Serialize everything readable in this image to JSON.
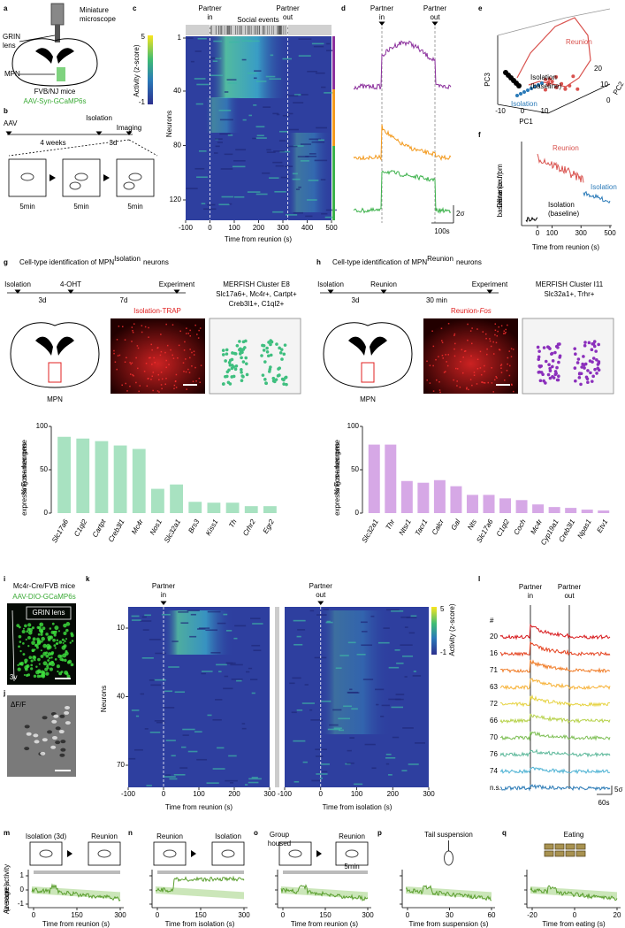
{
  "a": {
    "label": "a",
    "microscope": [
      "Miniature",
      "microscope"
    ],
    "grin": [
      "GRIN",
      "lens"
    ],
    "mpn": "MPN",
    "mice": "FVB/NJ mice",
    "virus": "AAV-Syn-GCaMP6s"
  },
  "b": {
    "label": "b",
    "aav": "AAV",
    "isolation": "Isolation",
    "imaging": "Imaging",
    "weeks": "4 weeks",
    "days": "3d",
    "durations": [
      "5min",
      "5min",
      "5min"
    ]
  },
  "c": {
    "label": "c",
    "partner_in": [
      "Partner",
      "in"
    ],
    "partner_out": [
      "Partner",
      "out"
    ],
    "events": "Social events",
    "colorbar_label": "Activity (z-score)",
    "colorbar_ticks": [
      5,
      -1
    ],
    "ylabel": "Neurons",
    "yticks": [
      1,
      40,
      80,
      120
    ],
    "xticks": [
      -100,
      0,
      100,
      200,
      300,
      400,
      500
    ],
    "xlabel": "Time from reunion (s)"
  },
  "d": {
    "label": "d",
    "partner_in": [
      "Partner",
      "in"
    ],
    "partner_out": [
      "Partner",
      "out"
    ],
    "scale_y": "2σ",
    "scale_x": "100s"
  },
  "e": {
    "label": "e",
    "reunion": "Reunion",
    "baseline": [
      "Isolation",
      "(baseline)"
    ],
    "isolation": "Isolation",
    "axes": [
      "PC1",
      "PC2",
      "PC3"
    ],
    "pc1_ticks": [
      -10,
      0,
      10
    ],
    "pc2_ticks": [
      0,
      10,
      20
    ]
  },
  "f": {
    "label": "f",
    "ylabel": [
      "Distance from",
      "baseline (a.u.)"
    ],
    "reunion": "Reunion",
    "isolation": "Isolation",
    "baseline": [
      "Isolation",
      "(baseline)"
    ],
    "xticks": [
      0,
      100,
      300,
      500
    ],
    "xlabel": "Time from reunion (s)"
  },
  "g": {
    "label": "g",
    "title": "Cell-type identification of  MPN",
    "title_sup": "Isolation",
    "title_end": "neurons",
    "timeline": [
      "Isolation",
      "3d",
      "4-OHT",
      "7d",
      "Experiment"
    ],
    "mpn": "MPN",
    "image_label": "Isolation-TRAP",
    "merfish": [
      "MERFISH Cluster E8",
      "Slc17a6+, Mc4r+, Cartpt+",
      "Creb3l1+, C1ql2+"
    ]
  },
  "h": {
    "label": "h",
    "title": "Cell-type identification of MPN",
    "title_sup": "Reunion",
    "title_end": "neurons",
    "timeline": [
      "Isolation",
      "3d",
      "Reunion",
      "30 min",
      "Experiment"
    ],
    "mpn": "MPN",
    "image_label": [
      "Reunion-",
      "Fos"
    ],
    "merfish": [
      "MERFISH Cluster I11",
      "Slc32a1+, Trhr+"
    ]
  },
  "i": {
    "label": "i",
    "mice": "Mc4r-Cre/FVB mice",
    "virus": "AAV-DIO-GCaMP6s",
    "grin": "GRIN lens",
    "ventricle": "3v"
  },
  "j": {
    "label": "j",
    "dff": "ΔF/F"
  },
  "k": {
    "label": "k",
    "partner_in": [
      "Partner",
      "in"
    ],
    "partner_out": [
      "Partner",
      "out"
    ],
    "colorbar_label": "Activity (z-score)",
    "colorbar_ticks": [
      5,
      -1
    ],
    "ylabel": "Neurons",
    "yticks": [
      10,
      40,
      70
    ],
    "xticks": [
      -100,
      0,
      100,
      200,
      300
    ],
    "xlabel_left": "Time from reunion (s)",
    "xlabel_right": "Time from isolation (s)"
  },
  "l": {
    "label": "l",
    "partner_in": [
      "Partner",
      "in"
    ],
    "partner_out": [
      "Partner",
      "out"
    ],
    "rows": [
      "#",
      20,
      16,
      71,
      63,
      72,
      66,
      70,
      76,
      74,
      "n.s."
    ],
    "scale_y": "5σ",
    "scale_x": "60s"
  },
  "bottom": {
    "ylabel": [
      "Average activity",
      "(z-score)"
    ],
    "yticks": [
      1,
      0,
      -1
    ]
  },
  "m": {
    "label": "m",
    "steps": [
      "Isolation (3d)",
      "Reunion"
    ],
    "xticks": [
      0,
      150,
      300
    ],
    "xlabel": "Time from reunion (s)"
  },
  "n": {
    "label": "n",
    "steps": [
      "Reunion",
      "Isolation"
    ],
    "xticks": [
      0,
      150,
      300
    ],
    "xlabel": "Time from isolation (s)"
  },
  "o": {
    "label": "o",
    "steps": [
      [
        "Group",
        "housed"
      ],
      "Reunion"
    ],
    "duration": "5min",
    "xticks": [
      0,
      150,
      300
    ],
    "xlabel": "Time from reunion (s)"
  },
  "p": {
    "label": "p",
    "title": "Tail suspension",
    "xticks": [
      0,
      30,
      60
    ],
    "xlabel": "Time from suspension (s)"
  },
  "q": {
    "label": "q",
    "title": "Eating",
    "xticks": [
      -20,
      0,
      20
    ],
    "xlabel": "Time from eating (s)"
  },
  "chart_data": [
    {
      "type": "bar",
      "ylabel": [
        "% Fos+ neurons",
        "expressing marker gene"
      ],
      "categories": [
        "Slc17a6",
        "C1ql2",
        "Cartpt",
        "Creb3l1",
        "Mc4r",
        "Nos1",
        "Slc32a1",
        "Brs3",
        "Kiss1",
        "Th",
        "Crhr2",
        "Egr2"
      ],
      "values": [
        88,
        86,
        83,
        78,
        74,
        28,
        33,
        13,
        12,
        12,
        8,
        8
      ],
      "color": "#a8e2c1",
      "ylim": [
        0,
        100
      ],
      "yticks": [
        0,
        50,
        100
      ]
    },
    {
      "type": "bar",
      "ylabel": [
        "% Fos+ neurons",
        "expressing marker gene"
      ],
      "categories": [
        "Slc32a1",
        "Thr",
        "Ntsr1",
        "Tacr1",
        "Calcr",
        "Gal",
        "Nts",
        "Slc17a6",
        "C1ql2",
        "Coch",
        "Mc4r",
        "Cyp19a1",
        "Creb3l1",
        "Npas1",
        "Etv1"
      ],
      "values": [
        79,
        79,
        37,
        35,
        38,
        31,
        21,
        21,
        17,
        15,
        10,
        7,
        6,
        4,
        3
      ],
      "color": "#d6a8e6",
      "ylim": [
        0,
        100
      ],
      "yticks": [
        0,
        50,
        100
      ]
    }
  ]
}
